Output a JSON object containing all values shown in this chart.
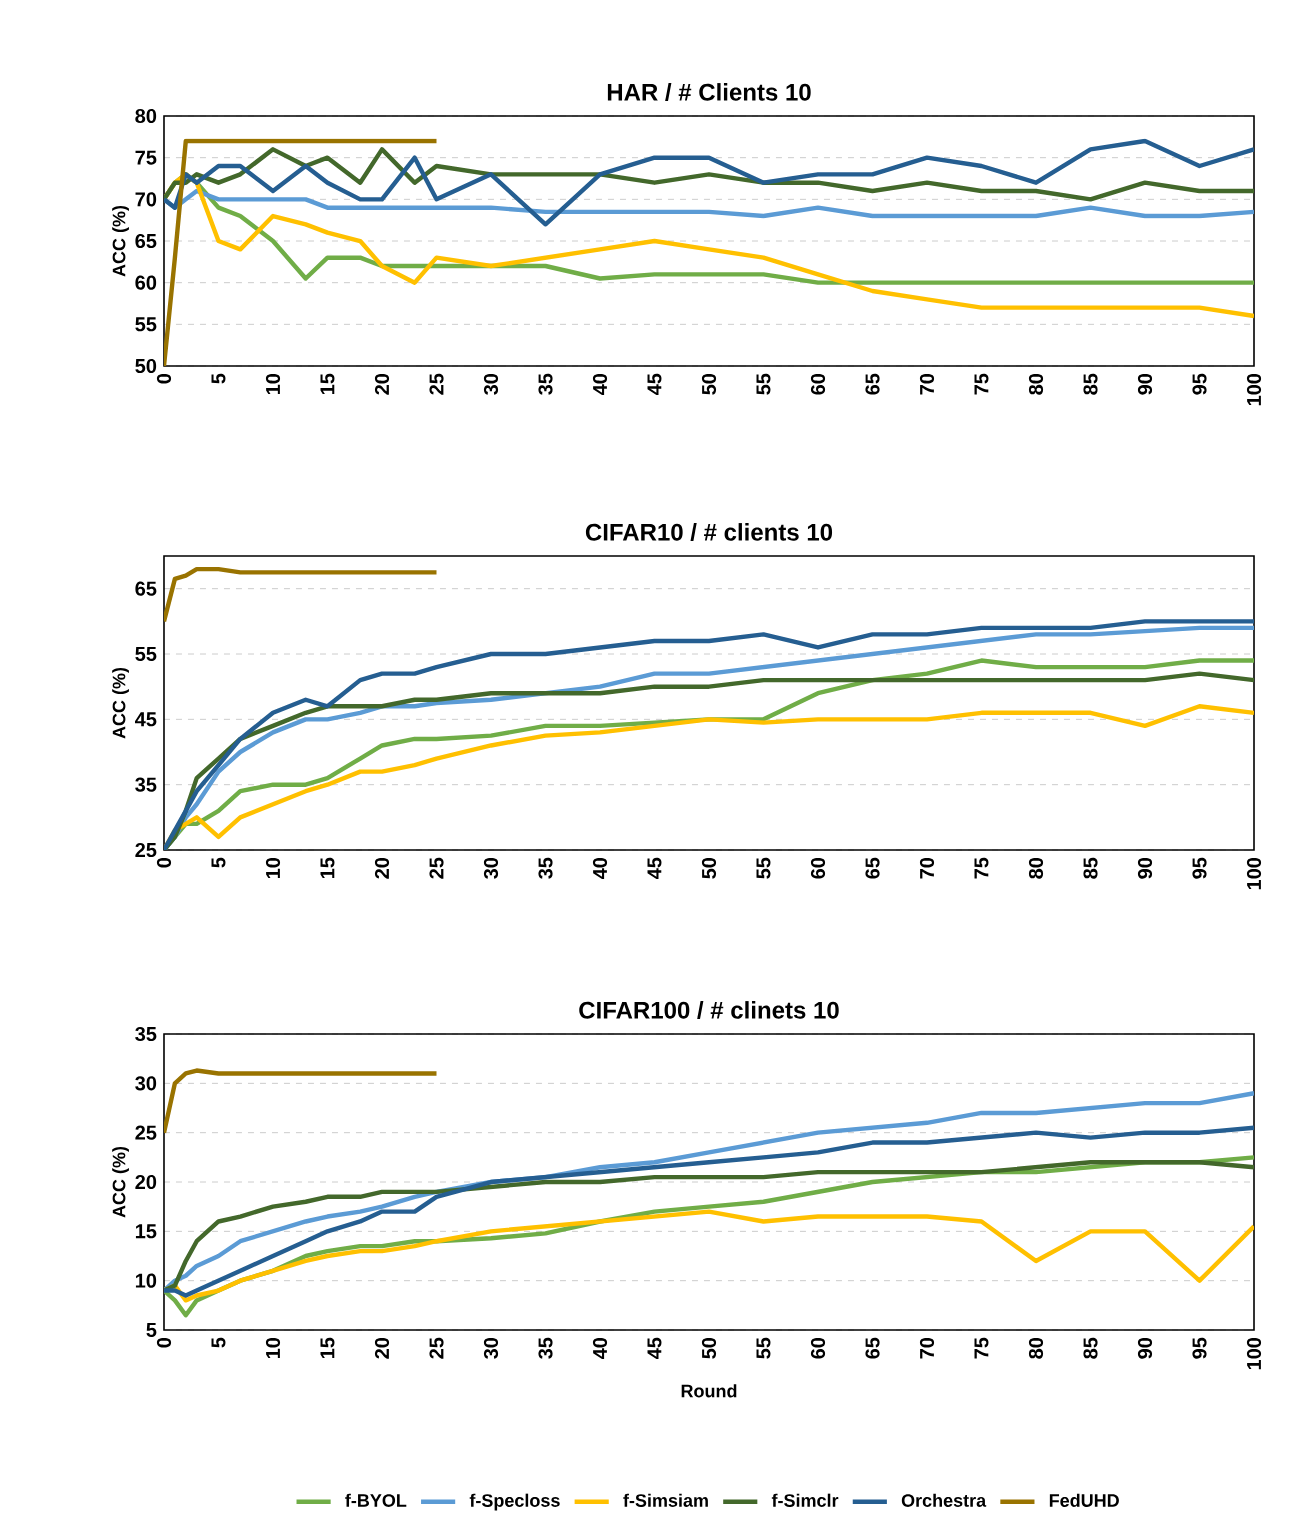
{
  "chart_data": [
    {
      "type": "line",
      "title": "HAR / # Clients 10",
      "ylabel": "ACC (%)",
      "x": [
        0,
        1,
        2,
        3,
        5,
        7,
        10,
        13,
        15,
        18,
        20,
        23,
        25,
        30,
        35,
        40,
        45,
        50,
        55,
        60,
        65,
        70,
        75,
        80,
        85,
        90,
        95,
        100
      ],
      "xlim": [
        0,
        100
      ],
      "xticks": [
        0,
        5,
        10,
        15,
        20,
        25,
        30,
        35,
        40,
        45,
        50,
        55,
        60,
        65,
        70,
        75,
        80,
        85,
        90,
        95,
        100
      ],
      "ylim": [
        50,
        80
      ],
      "yticks": [
        50,
        55,
        60,
        65,
        70,
        75,
        80
      ],
      "grid": "y",
      "series": [
        {
          "color": "#70ad47",
          "values": [
            70,
            72,
            73,
            72,
            69,
            68,
            65,
            60.5,
            63,
            63,
            62,
            62,
            62,
            62,
            62,
            60.5,
            61,
            61,
            61,
            60,
            60,
            60,
            60,
            60,
            60,
            60,
            60,
            60
          ]
        },
        {
          "color": "#5b9bd5",
          "values": [
            70,
            69,
            70,
            71,
            70,
            70,
            70,
            70,
            69,
            69,
            69,
            69,
            69,
            69,
            68.5,
            68.5,
            68.5,
            68.5,
            68,
            69,
            68,
            68,
            68,
            68,
            69,
            68,
            68,
            68.5
          ]
        },
        {
          "color": "#ffc000",
          "values": [
            70,
            72,
            73,
            72,
            65,
            64,
            68,
            67,
            66,
            65,
            62,
            60,
            63,
            62,
            63,
            64,
            65,
            64,
            63,
            61,
            59,
            58,
            57,
            57,
            57,
            57,
            57,
            56
          ]
        },
        {
          "color": "#43682b",
          "values": [
            70,
            72,
            72,
            73,
            72,
            73,
            76,
            74,
            75,
            72,
            76,
            72,
            74,
            73,
            73,
            73,
            72,
            73,
            72,
            72,
            71,
            72,
            71,
            71,
            70,
            72,
            71,
            71
          ]
        },
        {
          "color": "#255e91",
          "values": [
            70,
            69,
            73,
            72,
            74,
            74,
            71,
            74,
            72,
            70,
            70,
            75,
            70,
            73,
            67,
            73,
            75,
            75,
            72,
            73,
            73,
            75,
            74,
            72,
            76,
            77,
            74,
            76
          ]
        },
        {
          "color": "#997300",
          "values": [
            50,
            63,
            77,
            77,
            77,
            77,
            77,
            77,
            77,
            77,
            77,
            77,
            77,
            null,
            null,
            null,
            null,
            null,
            null,
            null,
            null,
            null,
            null,
            null,
            null,
            null,
            null,
            null
          ]
        }
      ]
    },
    {
      "type": "line",
      "title": "CIFAR10 / # clients 10",
      "ylabel": "ACC (%)",
      "x": [
        0,
        1,
        2,
        3,
        5,
        7,
        10,
        13,
        15,
        18,
        20,
        23,
        25,
        30,
        35,
        40,
        45,
        50,
        55,
        60,
        65,
        70,
        75,
        80,
        85,
        90,
        95,
        100
      ],
      "xlim": [
        0,
        100
      ],
      "xticks": [
        0,
        5,
        10,
        15,
        20,
        25,
        30,
        35,
        40,
        45,
        50,
        55,
        60,
        65,
        70,
        75,
        80,
        85,
        90,
        95,
        100
      ],
      "ylim": [
        25,
        70
      ],
      "yticks": [
        25,
        35,
        45,
        55,
        65
      ],
      "grid": "y",
      "series": [
        {
          "color": "#70ad47",
          "values": [
            25,
            27,
            29,
            29,
            31,
            34,
            35,
            35,
            36,
            39,
            41,
            42,
            42,
            42.5,
            44,
            44,
            44.5,
            45,
            45,
            49,
            51,
            52,
            54,
            53,
            53,
            53,
            54,
            54
          ]
        },
        {
          "color": "#5b9bd5",
          "values": [
            25,
            27,
            30,
            32,
            37,
            40,
            43,
            45,
            45,
            46,
            47,
            47,
            47.5,
            48,
            49,
            50,
            52,
            52,
            53,
            54,
            55,
            56,
            57,
            58,
            58,
            58.5,
            59,
            59
          ]
        },
        {
          "color": "#ffc000",
          "values": [
            25,
            28,
            29,
            30,
            27,
            30,
            32,
            34,
            35,
            37,
            37,
            38,
            39,
            41,
            42.5,
            43,
            44,
            45,
            44.5,
            45,
            45,
            45,
            46,
            46,
            46,
            44,
            47,
            46
          ]
        },
        {
          "color": "#43682b",
          "values": [
            25,
            27,
            31,
            36,
            39,
            42,
            44,
            46,
            47,
            47,
            47,
            48,
            48,
            49,
            49,
            49,
            50,
            50,
            51,
            51,
            51,
            51,
            51,
            51,
            51,
            51,
            52,
            51
          ]
        },
        {
          "color": "#255e91",
          "values": [
            25,
            28,
            31,
            34,
            38,
            42,
            46,
            48,
            47,
            51,
            52,
            52,
            53,
            55,
            55,
            56,
            57,
            57,
            58,
            56,
            58,
            58,
            59,
            59,
            59,
            60,
            60,
            60
          ]
        },
        {
          "color": "#997300",
          "values": [
            60,
            66.5,
            67,
            68,
            68,
            67.5,
            67.5,
            67.5,
            67.5,
            67.5,
            67.5,
            67.5,
            67.5,
            null,
            null,
            null,
            null,
            null,
            null,
            null,
            null,
            null,
            null,
            null,
            null,
            null,
            null,
            null
          ]
        }
      ]
    },
    {
      "type": "line",
      "title": "CIFAR100 / # clinets 10",
      "xlabel": "Round",
      "ylabel": "ACC (%)",
      "x": [
        0,
        1,
        2,
        3,
        5,
        7,
        10,
        13,
        15,
        18,
        20,
        23,
        25,
        30,
        35,
        40,
        45,
        50,
        55,
        60,
        65,
        70,
        75,
        80,
        85,
        90,
        95,
        100
      ],
      "xlim": [
        0,
        100
      ],
      "xticks": [
        0,
        5,
        10,
        15,
        20,
        25,
        30,
        35,
        40,
        45,
        50,
        55,
        60,
        65,
        70,
        75,
        80,
        85,
        90,
        95,
        100
      ],
      "ylim": [
        5,
        35
      ],
      "yticks": [
        5,
        10,
        15,
        20,
        25,
        30,
        35
      ],
      "grid": "y",
      "legend": "bottom",
      "series": [
        {
          "name": "f-BYOL",
          "color": "#70ad47",
          "values": [
            9,
            8,
            6.5,
            8,
            9,
            10,
            11,
            12.5,
            13,
            13.5,
            13.5,
            14,
            14,
            14.3,
            14.8,
            16,
            17,
            17.5,
            18,
            19,
            20,
            20.5,
            21,
            21,
            21.5,
            22,
            22,
            22.5
          ]
        },
        {
          "name": "f-Specloss",
          "color": "#5b9bd5",
          "values": [
            9,
            10,
            10.5,
            11.5,
            12.5,
            14,
            15,
            16,
            16.5,
            17,
            17.5,
            18.5,
            19,
            20,
            20.5,
            21.5,
            22,
            23,
            24,
            25,
            25.5,
            26,
            27,
            27,
            27.5,
            28,
            28,
            29
          ]
        },
        {
          "name": "f-Simsiam",
          "color": "#ffc000",
          "values": [
            9,
            9.5,
            8,
            8.5,
            9,
            10,
            11,
            12,
            12.5,
            13,
            13,
            13.5,
            14,
            15,
            15.5,
            16,
            16.5,
            17,
            16,
            16.5,
            16.5,
            16.5,
            16,
            12,
            15,
            15,
            10,
            15.5
          ]
        },
        {
          "name": "f-Simclr",
          "color": "#43682b",
          "values": [
            9,
            9.5,
            12,
            14,
            16,
            16.5,
            17.5,
            18,
            18.5,
            18.5,
            19,
            19,
            19,
            19.5,
            20,
            20,
            20.5,
            20.5,
            20.5,
            21,
            21,
            21,
            21,
            21.5,
            22,
            22,
            22,
            21.5
          ]
        },
        {
          "name": "Orchestra",
          "color": "#255e91",
          "values": [
            9,
            9,
            8.5,
            9,
            10,
            11,
            12.5,
            14,
            15,
            16,
            17,
            17,
            18.5,
            20,
            20.5,
            21,
            21.5,
            22,
            22.5,
            23,
            24,
            24,
            24.5,
            25,
            24.5,
            25,
            25,
            25.5
          ]
        },
        {
          "name": "FedUHD",
          "color": "#997300",
          "values": [
            25,
            30,
            31,
            31.3,
            31,
            31,
            31,
            31,
            31,
            31,
            31,
            31,
            31,
            null,
            null,
            null,
            null,
            null,
            null,
            null,
            null,
            null,
            null,
            null,
            null,
            null,
            null,
            null
          ]
        }
      ]
    }
  ]
}
